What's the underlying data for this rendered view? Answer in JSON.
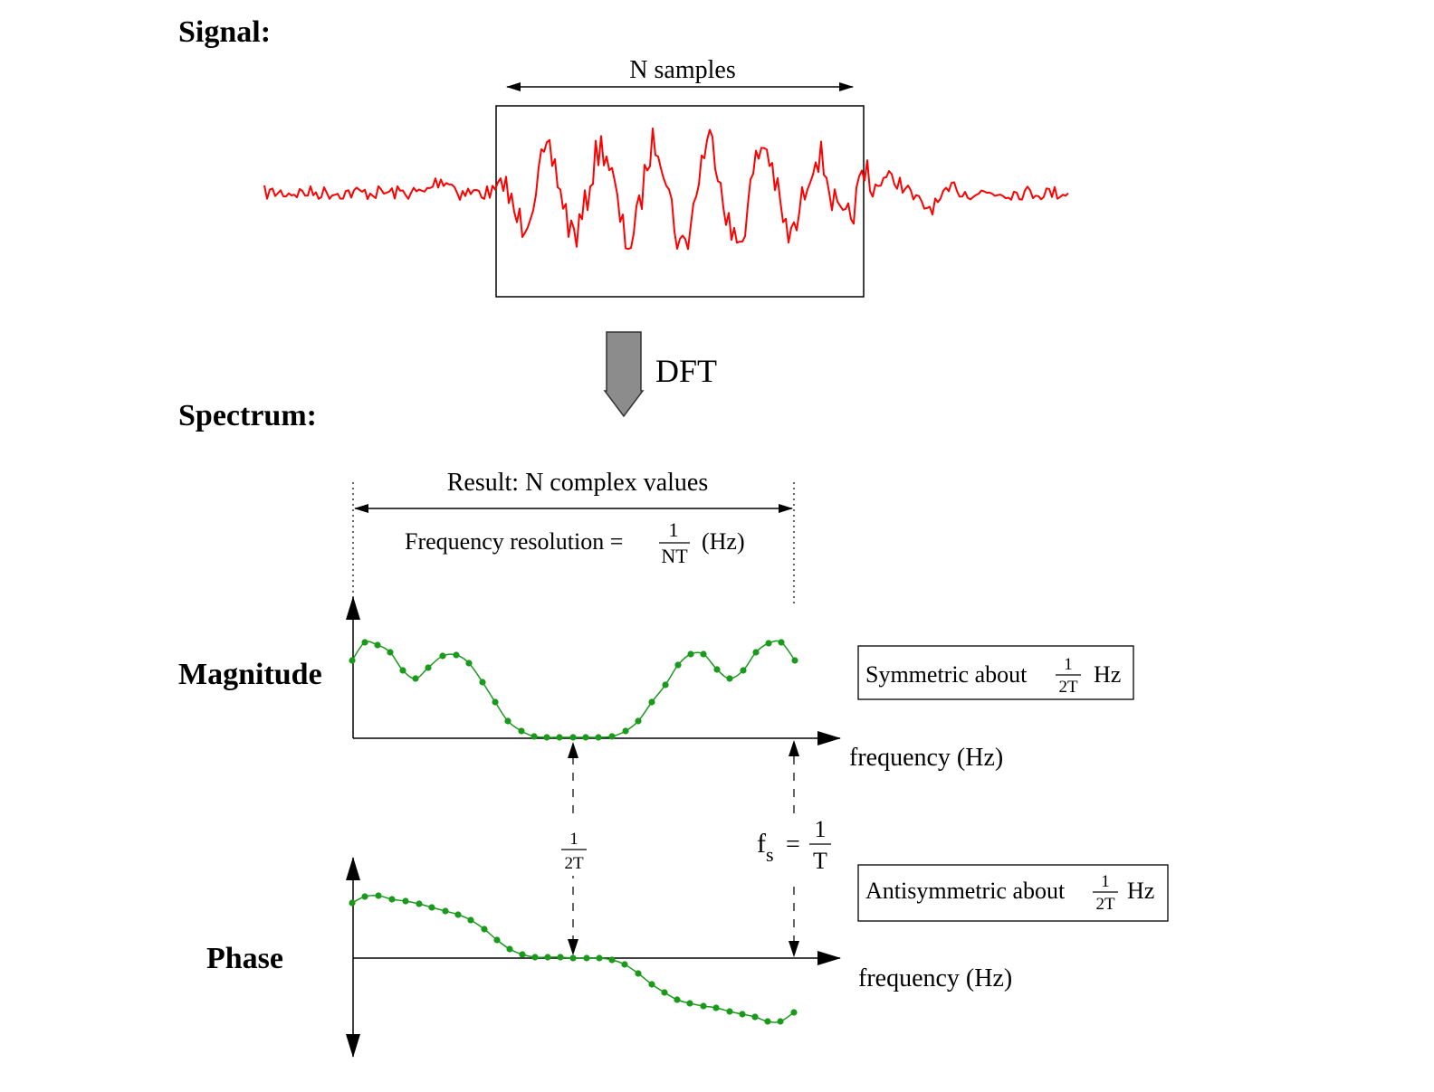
{
  "signal": {
    "heading": "Signal:",
    "window_label": "N samples"
  },
  "transform": {
    "label": "DFT"
  },
  "spectrum": {
    "heading": "Spectrum:",
    "result_label": "Result: N complex values",
    "resolution_label": "Frequency resolution =",
    "resolution_numerator": "1",
    "resolution_denominator": "NT",
    "resolution_unit": "(Hz)",
    "magnitude": {
      "label": "Magnitude",
      "axis_label": "frequency (Hz)",
      "note_text": "Symmetric about",
      "note_numerator": "1",
      "note_denominator": "2T",
      "note_unit": "Hz"
    },
    "phase": {
      "label": "Phase",
      "axis_label": "frequency (Hz)",
      "note_text": "Antisymmetric about",
      "note_numerator": "1",
      "note_denominator": "2T",
      "note_unit": "Hz"
    },
    "half_marker": {
      "numerator": "1",
      "denominator": "2T"
    },
    "fs_marker": {
      "symbol": "f",
      "subscript": "s",
      "equals": "=",
      "numerator": "1",
      "denominator": "T"
    }
  },
  "colors": {
    "signal_trace": "#ff0000",
    "spectrum_trace": "#1a9a1a",
    "arrow_fill": "#8c8c8c",
    "ink": "#000000"
  }
}
